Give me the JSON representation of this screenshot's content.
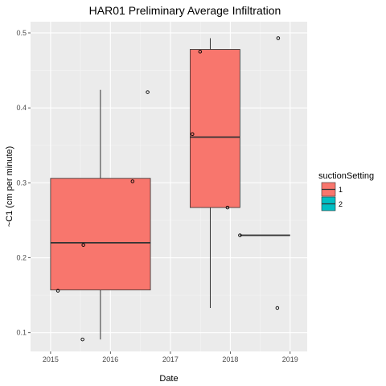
{
  "chart_data": {
    "type": "boxplot",
    "title": "HAR01 Preliminary Average Infiltration",
    "xlabel": "Date",
    "ylabel": "~C1 (cm per minute)",
    "x_ticks": [
      "2015",
      "2016",
      "2017",
      "2018",
      "2019"
    ],
    "y_ticks": [
      "0.1",
      "0.2",
      "0.3",
      "0.4",
      "0.5"
    ],
    "xlim": [
      "2014-09-01",
      "2019-04-15"
    ],
    "ylim": [
      0.075,
      0.515
    ],
    "legend": {
      "title": "suctionSetting",
      "placement": "right",
      "entries": [
        {
          "label": "1",
          "color": "#F8766D"
        },
        {
          "label": "2",
          "color": "#00BFC4"
        }
      ]
    },
    "boxes": [
      {
        "group": "1",
        "x_start": "2015-01-01",
        "x_end": "2016-09-01",
        "whisker_x": "2015-11-01",
        "whisker_low": 0.091,
        "q1": 0.157,
        "median": 0.22,
        "q3": 0.306,
        "whisker_high": 0.424
      },
      {
        "group": "1",
        "x_start": "2017-05-01",
        "x_end": "2018-03-01",
        "whisker_x": "2017-09-01",
        "whisker_low": 0.133,
        "q1": 0.267,
        "median": 0.361,
        "q3": 0.478,
        "whisker_high": 0.493
      },
      {
        "group": "2",
        "x_start": "2018-03-01",
        "x_end": "2019-01-01",
        "whisker_x": "2018-08-01",
        "whisker_low": 0.23,
        "q1": 0.23,
        "median": 0.23,
        "q3": 0.23,
        "whisker_high": 0.23
      }
    ],
    "points": [
      {
        "x": "2015-02-15",
        "y": 0.156
      },
      {
        "x": "2015-07-15",
        "y": 0.091
      },
      {
        "x": "2015-07-20",
        "y": 0.217
      },
      {
        "x": "2016-05-15",
        "y": 0.302
      },
      {
        "x": "2016-08-15",
        "y": 0.421
      },
      {
        "x": "2017-05-15",
        "y": 0.365
      },
      {
        "x": "2017-07-01",
        "y": 0.475
      },
      {
        "x": "2017-12-15",
        "y": 0.267
      },
      {
        "x": "2018-03-01",
        "y": 0.23
      },
      {
        "x": "2018-10-15",
        "y": 0.133
      },
      {
        "x": "2018-10-20",
        "y": 0.493
      }
    ],
    "colors": {
      "panel": "#EBEBEB",
      "grid_major": "#FFFFFF",
      "grid_minor": "#F5F5F5",
      "box_line": "#333333",
      "tick_text": "#4D4D4D"
    }
  }
}
